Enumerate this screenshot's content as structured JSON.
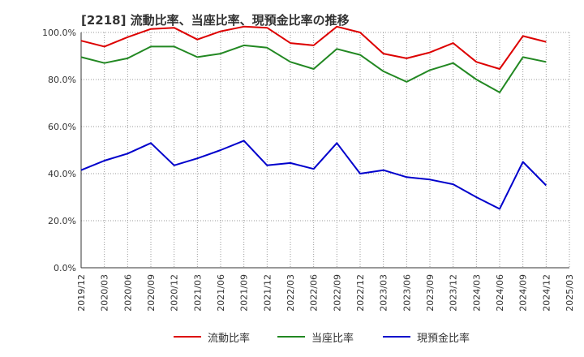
{
  "chart_data": {
    "type": "line",
    "title": "[2218]  流動比率、当座比率、現預金比率の推移",
    "xlabel": "",
    "ylabel": "",
    "ylim": [
      0,
      100
    ],
    "yticks": [
      "0.0%",
      "20.0%",
      "40.0%",
      "60.0%",
      "80.0%",
      "100.0%"
    ],
    "ytick_values": [
      0,
      20,
      40,
      60,
      80,
      100
    ],
    "categories": [
      "2019/12",
      "2020/03",
      "2020/06",
      "2020/09",
      "2020/12",
      "2021/03",
      "2021/06",
      "2021/09",
      "2021/12",
      "2022/03",
      "2022/06",
      "2022/09",
      "2022/12",
      "2023/03",
      "2023/06",
      "2023/09",
      "2023/12",
      "2024/03",
      "2024/06",
      "2024/09",
      "2024/12",
      "2025/03"
    ],
    "series": [
      {
        "name": "流動比率",
        "color": "#dd0000",
        "values": [
          96.5,
          94.0,
          98.0,
          101.5,
          102.0,
          97.0,
          100.5,
          102.5,
          102.0,
          95.5,
          94.5,
          102.5,
          100.0,
          91.0,
          89.0,
          91.5,
          95.5,
          87.5,
          84.5,
          98.5,
          96.0,
          null
        ]
      },
      {
        "name": "当座比率",
        "color": "#228822",
        "values": [
          89.5,
          87.0,
          89.0,
          94.0,
          94.0,
          89.5,
          91.0,
          94.5,
          93.5,
          87.5,
          84.5,
          93.0,
          90.5,
          83.5,
          79.0,
          84.0,
          87.0,
          80.0,
          74.5,
          89.5,
          87.5,
          null
        ]
      },
      {
        "name": "現預金比率",
        "color": "#0000cc",
        "values": [
          41.5,
          45.5,
          48.5,
          53.0,
          43.5,
          46.5,
          50.0,
          54.0,
          43.5,
          44.5,
          42.0,
          53.0,
          40.0,
          41.5,
          38.5,
          37.5,
          35.5,
          30.0,
          25.0,
          45.0,
          35.0,
          null
        ]
      }
    ],
    "grid": true,
    "legend_position": "bottom"
  }
}
